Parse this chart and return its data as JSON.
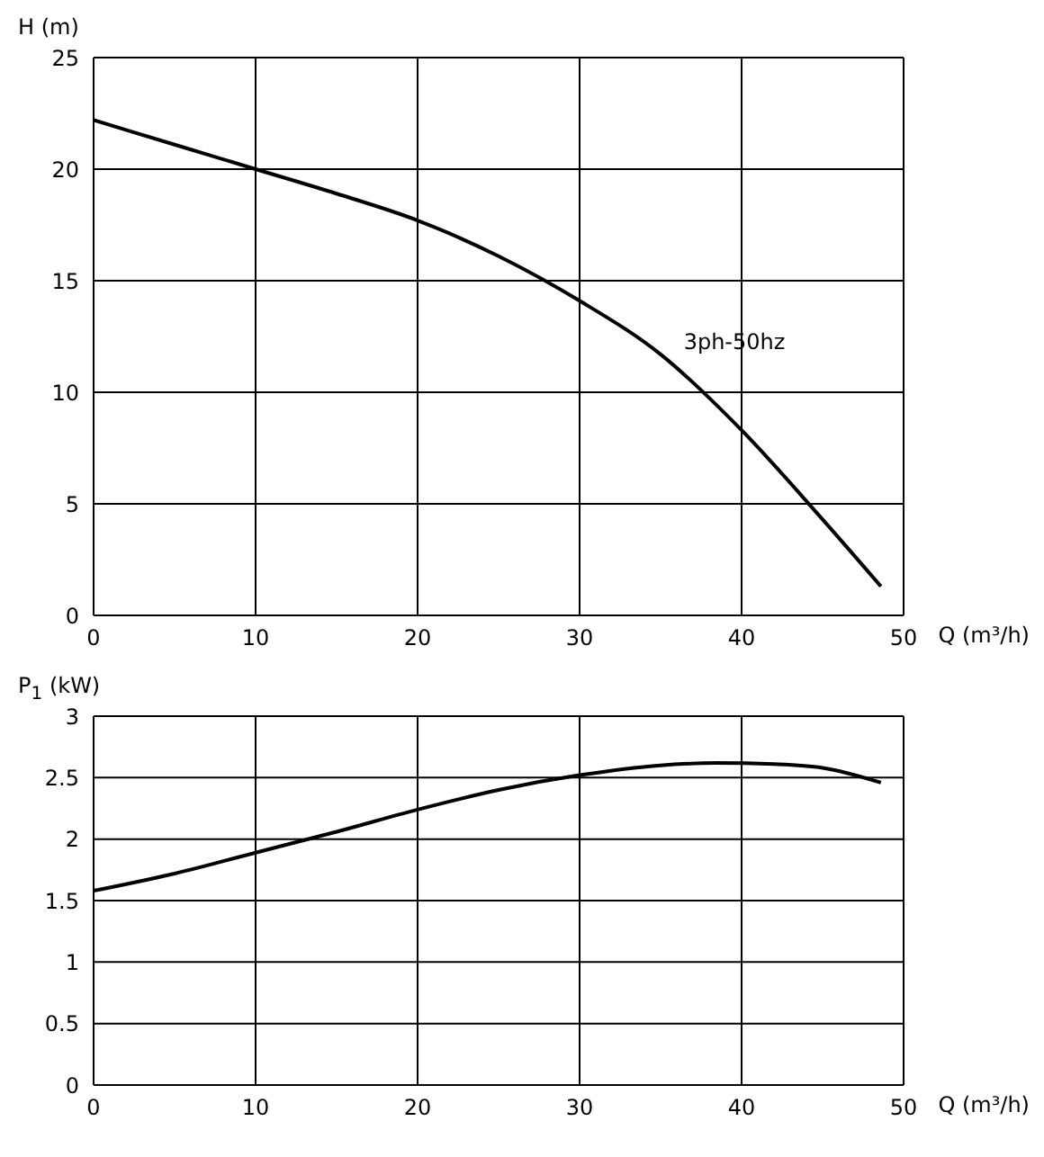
{
  "chart_data": [
    {
      "type": "line",
      "ylabel": "H (m)",
      "xlabel": "Q (m³/h)",
      "x": [
        0,
        5,
        10,
        15,
        20,
        25,
        30,
        35,
        40,
        45,
        48.6
      ],
      "xlim": [
        0,
        50
      ],
      "xticks": [
        0,
        10,
        20,
        30,
        40,
        50
      ],
      "ylim": [
        0,
        25
      ],
      "yticks": [
        0,
        5,
        10,
        15,
        20,
        25
      ],
      "grid": true,
      "marker": "none",
      "series": [
        {
          "name": "3ph-50hz",
          "color": "#000000",
          "values": [
            22.2,
            21.1,
            20.0,
            18.9,
            17.7,
            16.1,
            14.1,
            11.7,
            8.3,
            4.3,
            1.3
          ]
        }
      ]
    },
    {
      "type": "line",
      "ylabel": "P$_{1}$ (kW)",
      "xlabel": "Q (m³/h)",
      "x": [
        0,
        5,
        10,
        15,
        20,
        25,
        30,
        35,
        38.5,
        42,
        45,
        48.6
      ],
      "xlim": [
        0,
        50
      ],
      "xticks": [
        0,
        10,
        20,
        30,
        40,
        50
      ],
      "ylim": [
        0,
        3
      ],
      "yticks": [
        0,
        0.5,
        1,
        1.5,
        2,
        2.5,
        3
      ],
      "grid": true,
      "marker": "none",
      "series": [
        {
          "color": "#000000",
          "values": [
            1.58,
            1.72,
            1.89,
            2.06,
            2.24,
            2.4,
            2.52,
            2.6,
            2.62,
            2.61,
            2.58,
            2.46
          ]
        }
      ]
    }
  ]
}
